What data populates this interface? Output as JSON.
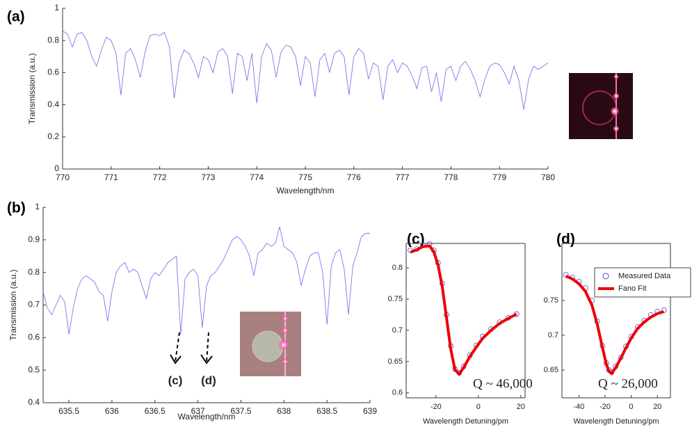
{
  "chart_data": [
    {
      "type": "line",
      "label": "(a)",
      "x_label": "Wavelength/nm",
      "y_label": "Transmission (a.u.)",
      "xlim": [
        770,
        780
      ],
      "xticks": [
        770,
        771,
        772,
        773,
        774,
        775,
        776,
        777,
        778,
        779,
        780
      ],
      "ylim": [
        0,
        1
      ],
      "yticks": [
        0,
        0.2,
        0.4,
        0.6,
        0.8,
        1
      ],
      "x": [
        770.0,
        770.1,
        770.2,
        770.3,
        770.4,
        770.5,
        770.6,
        770.7,
        770.8,
        770.9,
        771.0,
        771.1,
        771.2,
        771.3,
        771.4,
        771.5,
        771.6,
        771.7,
        771.8,
        771.9,
        772.0,
        772.1,
        772.2,
        772.3,
        772.4,
        772.5,
        772.6,
        772.7,
        772.8,
        772.9,
        773.0,
        773.1,
        773.2,
        773.3,
        773.4,
        773.5,
        773.6,
        773.7,
        773.8,
        773.9,
        774.0,
        774.1,
        774.2,
        774.3,
        774.4,
        774.5,
        774.6,
        774.7,
        774.8,
        774.9,
        775.0,
        775.1,
        775.2,
        775.3,
        775.4,
        775.5,
        775.6,
        775.7,
        775.8,
        775.9,
        776.0,
        776.1,
        776.2,
        776.3,
        776.4,
        776.5,
        776.6,
        776.7,
        776.8,
        776.9,
        777.0,
        777.1,
        777.2,
        777.3,
        777.4,
        777.5,
        777.6,
        777.7,
        777.8,
        777.9,
        778.0,
        778.1,
        778.2,
        778.3,
        778.4,
        778.5,
        778.6,
        778.7,
        778.8,
        778.9,
        779.0,
        779.1,
        779.2,
        779.3,
        779.4,
        779.5,
        779.6,
        779.7,
        779.8,
        779.9,
        780.0
      ],
      "series": [
        {
          "color": "#7777ee",
          "mode": "line",
          "values": [
            0.86,
            0.84,
            0.76,
            0.84,
            0.85,
            0.8,
            0.7,
            0.64,
            0.74,
            0.82,
            0.8,
            0.72,
            0.46,
            0.72,
            0.75,
            0.68,
            0.57,
            0.73,
            0.83,
            0.84,
            0.83,
            0.85,
            0.76,
            0.44,
            0.66,
            0.74,
            0.72,
            0.66,
            0.57,
            0.7,
            0.68,
            0.6,
            0.73,
            0.75,
            0.7,
            0.47,
            0.72,
            0.7,
            0.55,
            0.72,
            0.41,
            0.7,
            0.78,
            0.74,
            0.57,
            0.73,
            0.77,
            0.76,
            0.7,
            0.52,
            0.7,
            0.66,
            0.45,
            0.68,
            0.72,
            0.6,
            0.72,
            0.74,
            0.7,
            0.46,
            0.7,
            0.75,
            0.72,
            0.56,
            0.66,
            0.64,
            0.43,
            0.64,
            0.68,
            0.6,
            0.66,
            0.64,
            0.58,
            0.5,
            0.63,
            0.64,
            0.48,
            0.6,
            0.42,
            0.62,
            0.64,
            0.55,
            0.64,
            0.67,
            0.62,
            0.55,
            0.45,
            0.56,
            0.64,
            0.66,
            0.65,
            0.6,
            0.53,
            0.64,
            0.55,
            0.37,
            0.56,
            0.64,
            0.62,
            0.64,
            0.66
          ]
        }
      ]
    },
    {
      "type": "line",
      "label": "(b)",
      "x_label": "Wavelength/nm",
      "y_label": "Transmission (a.u.)",
      "xlim": [
        635.2,
        639
      ],
      "xticks": [
        635.5,
        636,
        636.5,
        637,
        637.5,
        638,
        638.5,
        639
      ],
      "ylim": [
        0.4,
        1
      ],
      "yticks": [
        0.4,
        0.5,
        0.6,
        0.7,
        0.8,
        0.9,
        1
      ],
      "annotations": [
        "(c)",
        "(d)"
      ],
      "x": [
        635.2,
        635.25,
        635.3,
        635.35,
        635.4,
        635.45,
        635.5,
        635.55,
        635.6,
        635.65,
        635.7,
        635.75,
        635.8,
        635.85,
        635.9,
        635.95,
        636.0,
        636.05,
        636.1,
        636.15,
        636.2,
        636.25,
        636.3,
        636.35,
        636.4,
        636.45,
        636.5,
        636.55,
        636.6,
        636.65,
        636.7,
        636.75,
        636.8,
        636.85,
        636.9,
        636.95,
        637.0,
        637.05,
        637.1,
        637.15,
        637.2,
        637.25,
        637.3,
        637.35,
        637.4,
        637.45,
        637.5,
        637.55,
        637.6,
        637.65,
        637.7,
        637.75,
        637.8,
        637.85,
        637.9,
        637.95,
        638.0,
        638.05,
        638.1,
        638.15,
        638.2,
        638.25,
        638.3,
        638.35,
        638.4,
        638.45,
        638.5,
        638.55,
        638.6,
        638.65,
        638.7,
        638.75,
        638.8,
        638.85,
        638.9,
        638.95,
        639.0
      ],
      "series": [
        {
          "color": "#7777ee",
          "mode": "line",
          "values": [
            0.74,
            0.69,
            0.67,
            0.7,
            0.73,
            0.71,
            0.61,
            0.69,
            0.75,
            0.78,
            0.79,
            0.78,
            0.77,
            0.74,
            0.73,
            0.65,
            0.74,
            0.8,
            0.82,
            0.83,
            0.8,
            0.81,
            0.8,
            0.76,
            0.72,
            0.78,
            0.8,
            0.79,
            0.81,
            0.83,
            0.84,
            0.85,
            0.61,
            0.78,
            0.8,
            0.81,
            0.79,
            0.63,
            0.76,
            0.79,
            0.8,
            0.82,
            0.84,
            0.87,
            0.9,
            0.91,
            0.9,
            0.88,
            0.85,
            0.79,
            0.86,
            0.87,
            0.89,
            0.88,
            0.89,
            0.94,
            0.88,
            0.87,
            0.86,
            0.83,
            0.76,
            0.81,
            0.85,
            0.86,
            0.86,
            0.8,
            0.64,
            0.82,
            0.86,
            0.87,
            0.81,
            0.67,
            0.82,
            0.86,
            0.91,
            0.92,
            0.92
          ]
        }
      ]
    },
    {
      "type": "scatter",
      "label": "(c)",
      "x_label": "Wavelength Detuning/pm",
      "annotation": "Q ~ 46,000",
      "xlim": [
        -34,
        22
      ],
      "xticks": [
        -20,
        0,
        20
      ],
      "ylim": [
        0.592,
        0.839
      ],
      "yticks": [
        0.6,
        0.65,
        0.7,
        0.75,
        0.8
      ],
      "x": [
        -32,
        -29,
        -26,
        -23,
        -21,
        -19,
        -17,
        -15,
        -13,
        -11,
        -9,
        -7,
        -4,
        -1,
        2,
        6,
        10,
        14,
        18
      ],
      "series": [
        {
          "color": "#4444dd",
          "mode": "markers",
          "values": [
            0.828,
            0.83,
            0.836,
            0.838,
            0.828,
            0.808,
            0.775,
            0.725,
            0.675,
            0.638,
            0.632,
            0.642,
            0.66,
            0.676,
            0.69,
            0.702,
            0.713,
            0.72,
            0.726
          ]
        },
        {
          "color": "#ee0000",
          "mode": "line",
          "values": [
            0.825,
            0.829,
            0.834,
            0.835,
            0.826,
            0.805,
            0.77,
            0.72,
            0.67,
            0.637,
            0.63,
            0.64,
            0.658,
            0.673,
            0.687,
            0.7,
            0.711,
            0.719,
            0.726
          ]
        }
      ]
    },
    {
      "type": "scatter",
      "label": "(d)",
      "x_label": "Wavelength Detuning/pm",
      "annotation": "Q ~ 26,000",
      "xlim": [
        -53,
        30
      ],
      "xticks": [
        -40,
        -20,
        0,
        20
      ],
      "ylim": [
        0.61,
        0.832
      ],
      "yticks": [
        0.65,
        0.7,
        0.75
      ],
      "legend": "upper right",
      "x": [
        -50,
        -45,
        -40,
        -35,
        -30,
        -26,
        -22,
        -19,
        -17,
        -15,
        -12,
        -8,
        -4,
        0,
        5,
        10,
        15,
        20,
        25
      ],
      "series": [
        {
          "name": "Measured Data",
          "color": "#4444dd",
          "mode": "markers",
          "values": [
            0.787,
            0.783,
            0.777,
            0.768,
            0.75,
            0.72,
            0.685,
            0.66,
            0.65,
            0.647,
            0.655,
            0.668,
            0.684,
            0.698,
            0.712,
            0.721,
            0.729,
            0.734,
            0.736
          ]
        },
        {
          "name": "Fano Fit",
          "color": "#ee0000",
          "mode": "line",
          "values": [
            0.785,
            0.781,
            0.774,
            0.763,
            0.743,
            0.716,
            0.682,
            0.658,
            0.648,
            0.645,
            0.653,
            0.667,
            0.682,
            0.696,
            0.71,
            0.719,
            0.726,
            0.731,
            0.734
          ]
        }
      ]
    }
  ]
}
